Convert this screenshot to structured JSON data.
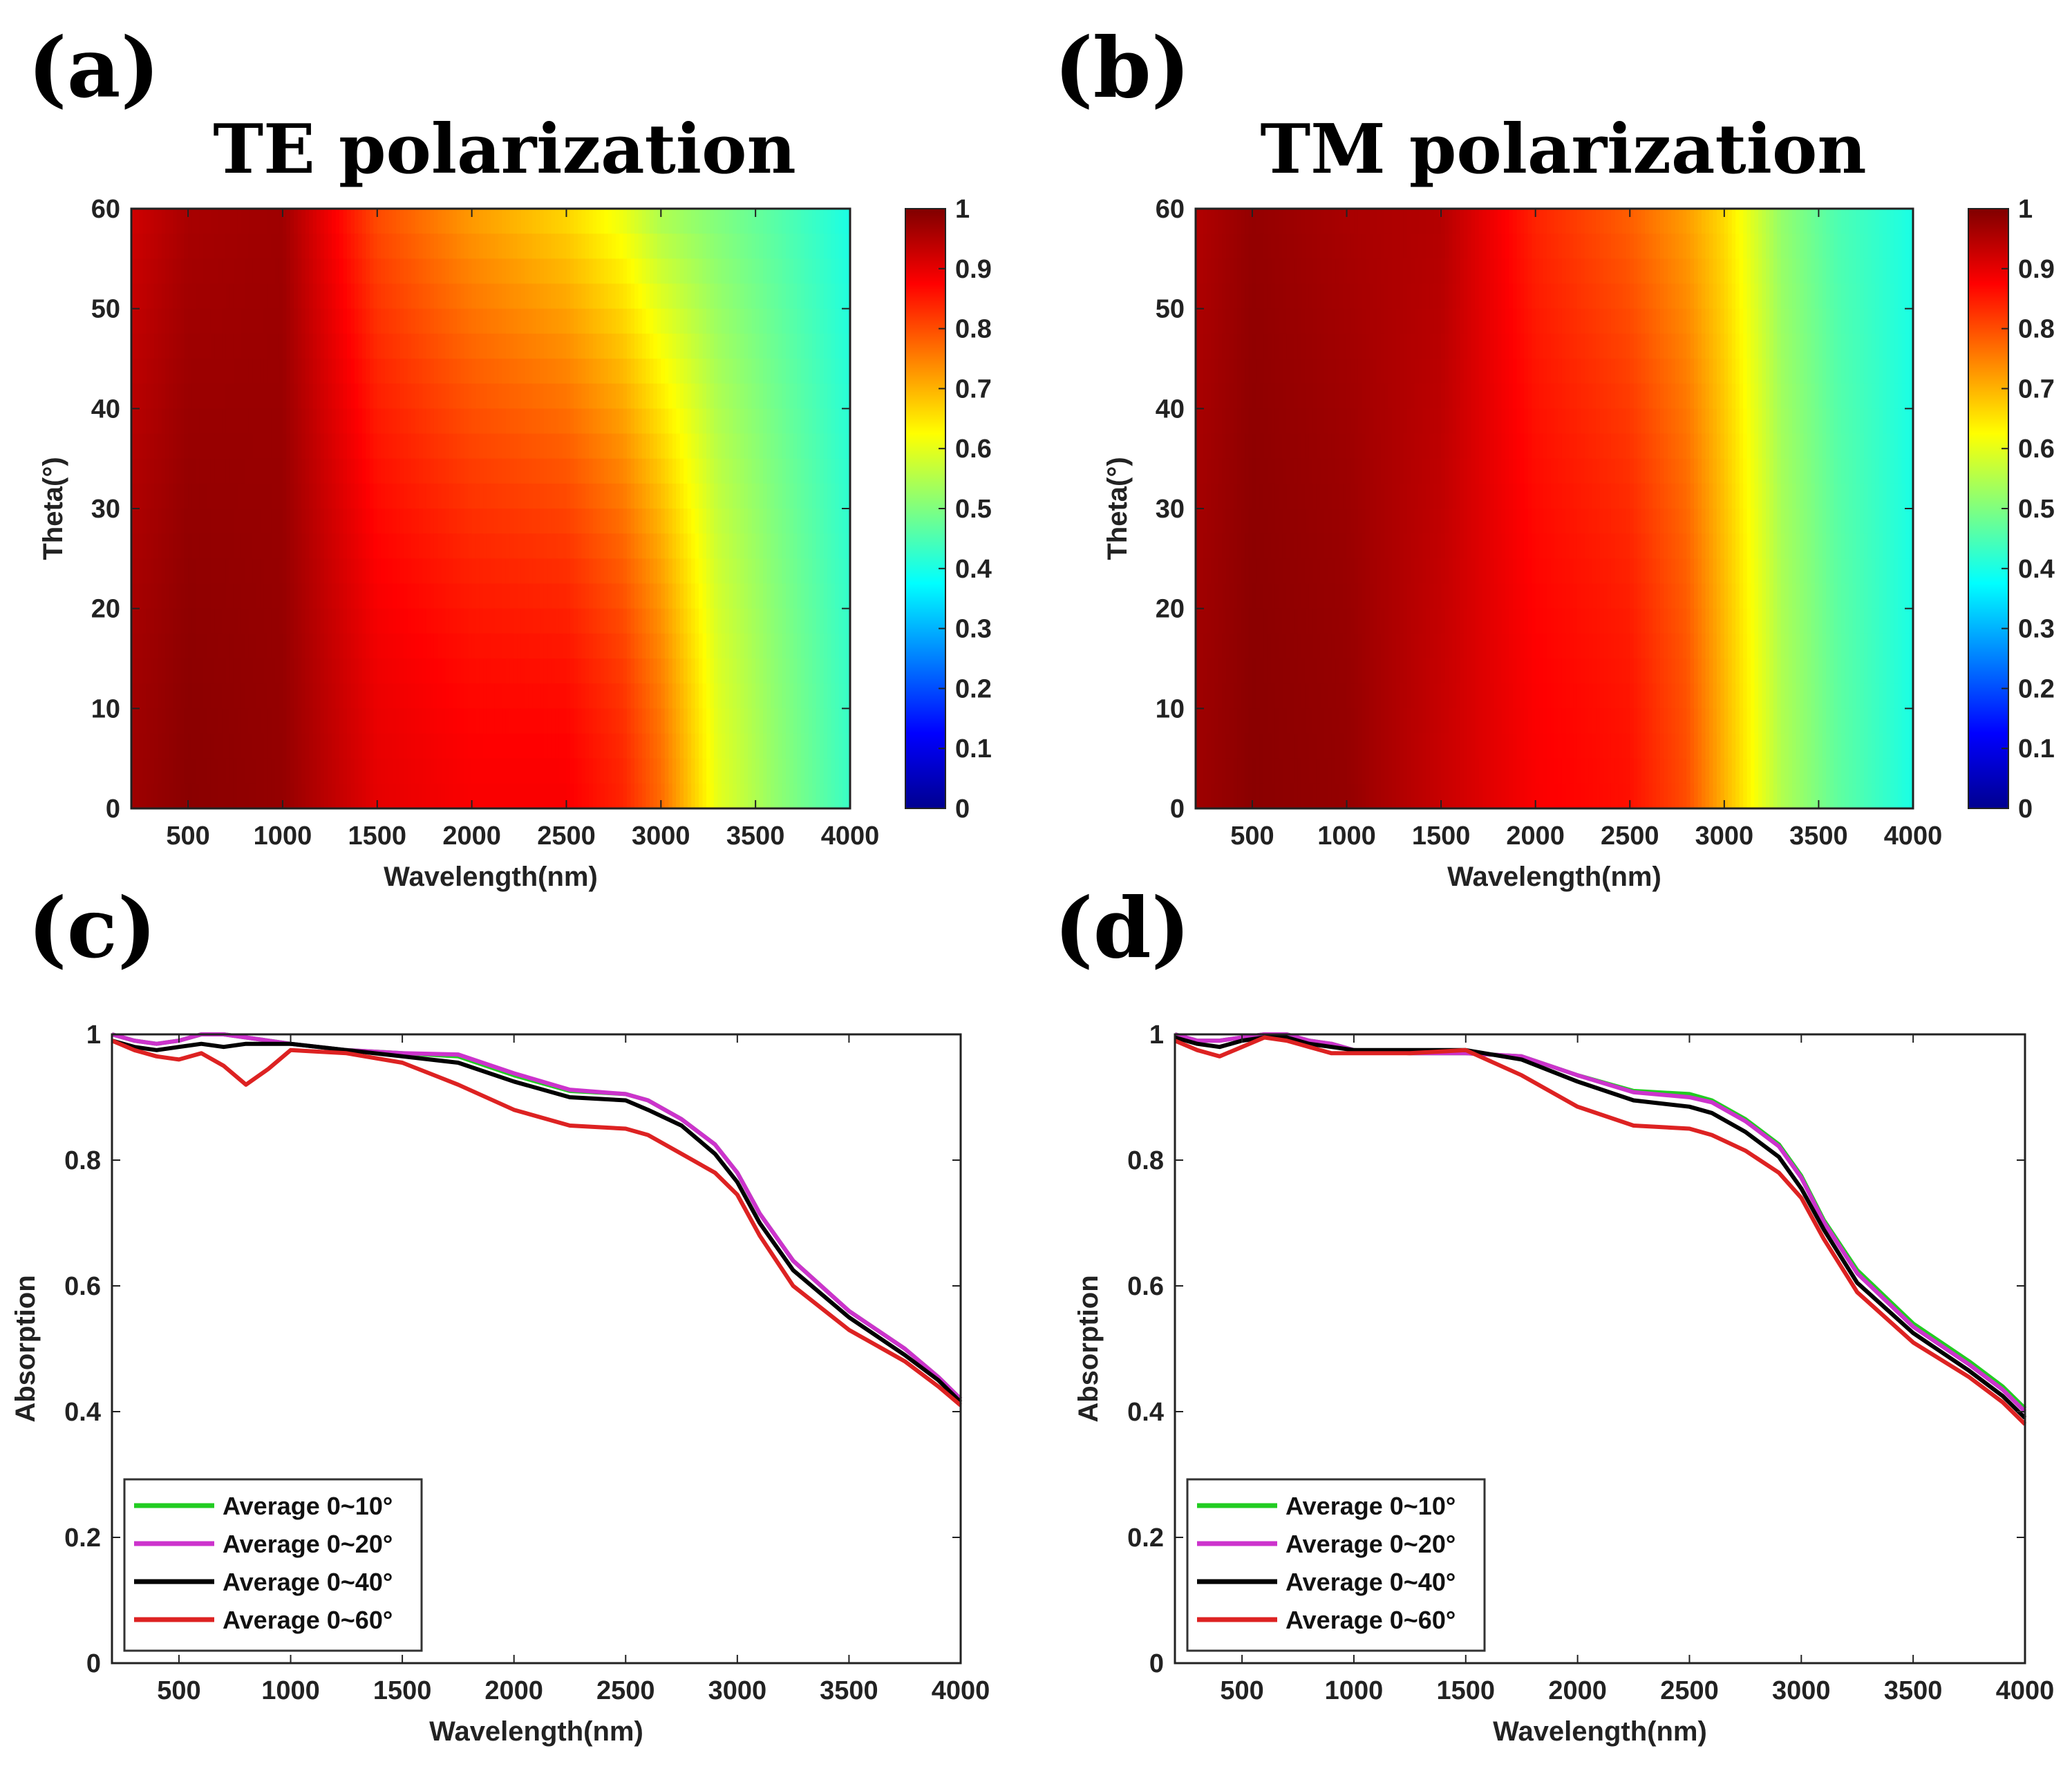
{
  "chart_data": [
    {
      "panel": "(a)",
      "type": "heatmap",
      "title": "TE polarization",
      "xlabel": "Wavelength(nm)",
      "ylabel": "Theta(°)",
      "xlim": [
        200,
        4000
      ],
      "ylim": [
        0,
        60
      ],
      "xticks": [
        500,
        1000,
        1500,
        2000,
        2500,
        3000,
        3500,
        4000
      ],
      "yticks": [
        0,
        10,
        20,
        30,
        40,
        50,
        60
      ],
      "colorbar": {
        "range": [
          0,
          1
        ],
        "ticks": [
          "0",
          "0.1",
          "0.2",
          "0.3",
          "0.4",
          "0.5",
          "0.6",
          "0.7",
          "0.8",
          "0.9",
          "1"
        ]
      },
      "approx_absorption_profile": {
        "wavelengths": [
          200,
          500,
          1000,
          1500,
          2000,
          2500,
          2800,
          3000,
          3300,
          3600,
          4000
        ],
        "theta_0": [
          0.97,
          0.99,
          0.98,
          0.9,
          0.88,
          0.88,
          0.84,
          0.77,
          0.6,
          0.52,
          0.43
        ],
        "theta_60": [
          0.92,
          0.96,
          0.97,
          0.8,
          0.72,
          0.66,
          0.6,
          0.54,
          0.5,
          0.46,
          0.4
        ]
      }
    },
    {
      "panel": "(b)",
      "type": "heatmap",
      "title": "TM polarization",
      "xlabel": "Wavelength(nm)",
      "ylabel": "Theta(°)",
      "xlim": [
        200,
        4000
      ],
      "ylim": [
        0,
        60
      ],
      "xticks": [
        500,
        1000,
        1500,
        2000,
        2500,
        3000,
        3500,
        4000
      ],
      "yticks": [
        0,
        10,
        20,
        30,
        40,
        50,
        60
      ],
      "colorbar": {
        "range": [
          0,
          1
        ],
        "ticks": [
          "0",
          "0.1",
          "0.2",
          "0.3",
          "0.4",
          "0.5",
          "0.6",
          "0.7",
          "0.8",
          "0.9",
          "1"
        ]
      },
      "approx_absorption_profile": {
        "wavelengths": [
          200,
          500,
          1000,
          1500,
          2000,
          2500,
          2800,
          3000,
          3300,
          3600,
          4000
        ],
        "theta_0": [
          0.97,
          0.99,
          0.98,
          0.93,
          0.88,
          0.86,
          0.8,
          0.7,
          0.55,
          0.47,
          0.4
        ],
        "theta_60": [
          0.95,
          0.98,
          0.96,
          0.95,
          0.84,
          0.78,
          0.72,
          0.66,
          0.52,
          0.45,
          0.4
        ]
      }
    },
    {
      "panel": "(c)",
      "type": "line",
      "title": "",
      "xlabel": "Wavelength(nm)",
      "ylabel": "Absorption",
      "xlim": [
        200,
        4000
      ],
      "ylim": [
        0,
        1
      ],
      "xticks": [
        500,
        1000,
        1500,
        2000,
        2500,
        3000,
        3500,
        4000
      ],
      "yticks": [
        0,
        0.2,
        0.4,
        0.6,
        0.8,
        1
      ],
      "legend_position": "bottom-left",
      "x": [
        200,
        300,
        400,
        500,
        600,
        700,
        800,
        900,
        1000,
        1250,
        1500,
        1750,
        2000,
        2250,
        2500,
        2600,
        2750,
        2900,
        3000,
        3100,
        3250,
        3500,
        3750,
        3900,
        4000
      ],
      "series": [
        {
          "name": "Average 0~10°",
          "color": "#22cc22",
          "values": [
            1.0,
            0.99,
            0.985,
            0.99,
            1.0,
            1.0,
            0.995,
            0.99,
            0.985,
            0.975,
            0.97,
            0.965,
            0.935,
            0.91,
            0.905,
            0.895,
            0.865,
            0.825,
            0.78,
            0.715,
            0.64,
            0.56,
            0.5,
            0.455,
            0.42
          ]
        },
        {
          "name": "Average 0~20°",
          "color": "#cc33cc",
          "values": [
            1.0,
            0.99,
            0.985,
            0.99,
            1.0,
            1.0,
            0.995,
            0.99,
            0.985,
            0.975,
            0.97,
            0.968,
            0.938,
            0.912,
            0.905,
            0.895,
            0.865,
            0.825,
            0.78,
            0.715,
            0.64,
            0.56,
            0.5,
            0.455,
            0.42
          ]
        },
        {
          "name": "Average 0~40°",
          "color": "#000000",
          "values": [
            0.99,
            0.98,
            0.975,
            0.98,
            0.985,
            0.98,
            0.985,
            0.985,
            0.985,
            0.975,
            0.965,
            0.955,
            0.925,
            0.9,
            0.895,
            0.88,
            0.855,
            0.81,
            0.765,
            0.7,
            0.625,
            0.55,
            0.49,
            0.45,
            0.415
          ]
        },
        {
          "name": "Average 0~60°",
          "color": "#dd2222",
          "values": [
            0.99,
            0.975,
            0.965,
            0.96,
            0.97,
            0.95,
            0.92,
            0.945,
            0.975,
            0.97,
            0.955,
            0.92,
            0.88,
            0.855,
            0.85,
            0.84,
            0.81,
            0.78,
            0.745,
            0.68,
            0.6,
            0.53,
            0.48,
            0.44,
            0.41
          ]
        }
      ]
    },
    {
      "panel": "(d)",
      "type": "line",
      "title": "",
      "xlabel": "Wavelength(nm)",
      "ylabel": "Absorption",
      "xlim": [
        200,
        4000
      ],
      "ylim": [
        0,
        1
      ],
      "xticks": [
        500,
        1000,
        1500,
        2000,
        2500,
        3000,
        3500,
        4000
      ],
      "yticks": [
        0,
        0.2,
        0.4,
        0.6,
        0.8,
        1
      ],
      "legend_position": "bottom-left",
      "x": [
        200,
        300,
        400,
        500,
        600,
        700,
        800,
        900,
        1000,
        1250,
        1500,
        1750,
        2000,
        2250,
        2500,
        2600,
        2750,
        2900,
        3000,
        3100,
        3250,
        3500,
        3750,
        3900,
        4000
      ],
      "series": [
        {
          "name": "Average 0~10°",
          "color": "#22cc22",
          "values": [
            1.0,
            0.99,
            0.99,
            0.995,
            1.0,
            1.0,
            0.99,
            0.985,
            0.975,
            0.97,
            0.97,
            0.965,
            0.935,
            0.91,
            0.905,
            0.895,
            0.865,
            0.825,
            0.775,
            0.705,
            0.625,
            0.54,
            0.48,
            0.44,
            0.405
          ]
        },
        {
          "name": "Average 0~20°",
          "color": "#cc33cc",
          "values": [
            1.0,
            0.99,
            0.99,
            0.995,
            1.0,
            1.0,
            0.99,
            0.985,
            0.975,
            0.97,
            0.97,
            0.965,
            0.935,
            0.908,
            0.9,
            0.892,
            0.862,
            0.822,
            0.772,
            0.702,
            0.62,
            0.535,
            0.475,
            0.435,
            0.4
          ]
        },
        {
          "name": "Average 0~40°",
          "color": "#000000",
          "values": [
            0.995,
            0.985,
            0.98,
            0.99,
            0.995,
            0.995,
            0.985,
            0.98,
            0.975,
            0.975,
            0.975,
            0.96,
            0.925,
            0.895,
            0.885,
            0.875,
            0.845,
            0.805,
            0.755,
            0.69,
            0.605,
            0.525,
            0.465,
            0.425,
            0.39
          ]
        },
        {
          "name": "Average 0~60°",
          "color": "#dd2222",
          "values": [
            0.99,
            0.975,
            0.965,
            0.98,
            0.995,
            0.99,
            0.98,
            0.97,
            0.97,
            0.97,
            0.975,
            0.935,
            0.885,
            0.855,
            0.85,
            0.84,
            0.815,
            0.78,
            0.74,
            0.675,
            0.59,
            0.51,
            0.455,
            0.415,
            0.38
          ]
        }
      ]
    }
  ]
}
